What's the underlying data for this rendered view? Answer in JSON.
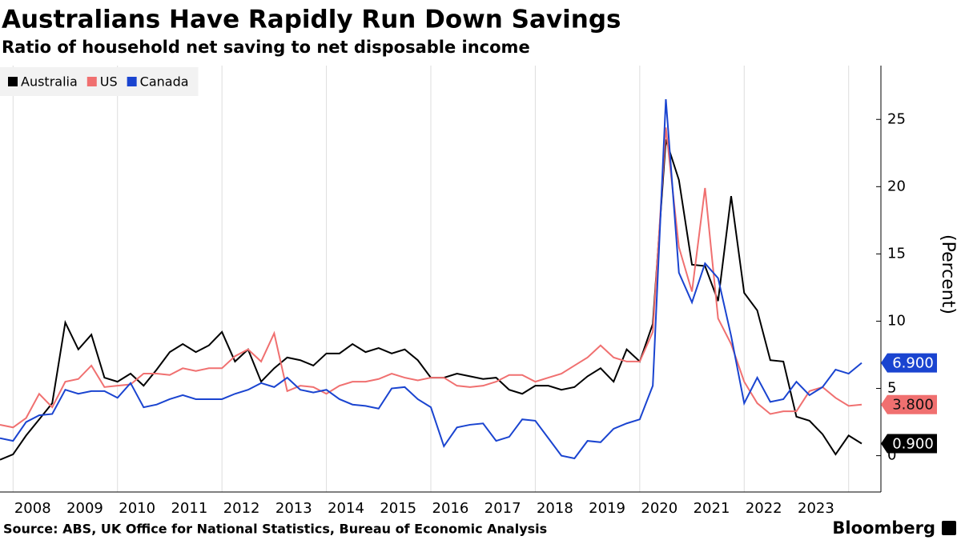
{
  "chart_data": {
    "type": "line",
    "title": "Australians Have Rapidly Run Down Savings",
    "subtitle": "Ratio of household net saving to net disposable income",
    "y_label": "(Percent)",
    "source": "Source: ABS, UK Office for National Statistics, Bureau of Economic Analysis",
    "credit": "Bloomberg",
    "legend": "upper left",
    "xgrid": true,
    "categories": [
      null,
      "2008",
      null,
      null,
      null,
      "2009",
      null,
      null,
      null,
      "2010",
      null,
      null,
      null,
      "2011",
      null,
      null,
      null,
      "2012",
      null,
      null,
      null,
      "2013",
      null,
      null,
      null,
      "2014",
      null,
      null,
      null,
      "2015",
      null,
      null,
      null,
      "2016",
      null,
      null,
      null,
      "2017",
      null,
      null,
      null,
      "2018",
      null,
      null,
      null,
      "2019",
      null,
      null,
      null,
      "2020",
      null,
      null,
      null,
      "2021",
      null,
      null,
      null,
      "2022",
      null,
      null,
      null,
      "2023",
      null,
      null,
      null,
      null,
      null
    ],
    "series": [
      {
        "name": "Australia",
        "color": "#000000",
        "label_text_color": "#ffffff",
        "values": [
          -0.3,
          0.1,
          1.5,
          2.7,
          3.9,
          9.9,
          7.9,
          9.0,
          5.8,
          5.5,
          6.1,
          5.2,
          6.4,
          7.7,
          8.3,
          7.7,
          8.2,
          9.2,
          7.0,
          7.9,
          5.5,
          6.5,
          7.3,
          7.1,
          6.7,
          7.6,
          7.6,
          8.3,
          7.7,
          8.0,
          7.6,
          7.9,
          7.1,
          5.8,
          5.8,
          6.1,
          5.9,
          5.7,
          5.8,
          4.9,
          4.6,
          5.2,
          5.2,
          4.9,
          5.1,
          5.9,
          6.5,
          5.5,
          7.9,
          7.0,
          9.8,
          23.5,
          20.5,
          14.2,
          14.1,
          11.5,
          19.3,
          12.1,
          10.8,
          7.1,
          7.0,
          2.9,
          2.6,
          1.6,
          0.1,
          1.5,
          0.9
        ],
        "value_labels": [
          null,
          null,
          null,
          null,
          null,
          null,
          null,
          null,
          null,
          null,
          null,
          null,
          null,
          null,
          null,
          null,
          null,
          null,
          null,
          null,
          null,
          null,
          null,
          null,
          null,
          null,
          null,
          null,
          null,
          null,
          null,
          null,
          null,
          null,
          null,
          null,
          null,
          null,
          null,
          null,
          null,
          null,
          null,
          null,
          null,
          null,
          null,
          null,
          null,
          null,
          null,
          null,
          null,
          null,
          null,
          null,
          null,
          null,
          null,
          null,
          null,
          null,
          null,
          null,
          null,
          null,
          "0.900"
        ]
      },
      {
        "name": "US",
        "color": "#f07070",
        "label_text_color": "#111111",
        "values": [
          2.3,
          2.1,
          2.8,
          4.6,
          3.6,
          5.5,
          5.7,
          6.7,
          5.1,
          5.2,
          5.3,
          6.1,
          6.1,
          6.0,
          6.5,
          6.3,
          6.5,
          6.5,
          7.4,
          7.9,
          7.0,
          9.1,
          4.8,
          5.2,
          5.1,
          4.6,
          5.2,
          5.5,
          5.5,
          5.7,
          6.1,
          5.8,
          5.6,
          5.8,
          5.8,
          5.2,
          5.1,
          5.2,
          5.5,
          6.0,
          6.0,
          5.5,
          5.8,
          6.1,
          6.7,
          7.3,
          8.2,
          7.3,
          7.0,
          7.0,
          9.2,
          24.4,
          15.5,
          12.2,
          19.9,
          10.2,
          8.3,
          5.5,
          3.9,
          3.1,
          3.3,
          3.3,
          4.8,
          5.1,
          4.3,
          3.7,
          3.8
        ],
        "value_labels": [
          null,
          null,
          null,
          null,
          null,
          null,
          null,
          null,
          null,
          null,
          null,
          null,
          null,
          null,
          null,
          null,
          null,
          null,
          null,
          null,
          null,
          null,
          null,
          null,
          null,
          null,
          null,
          null,
          null,
          null,
          null,
          null,
          null,
          null,
          null,
          null,
          null,
          null,
          null,
          null,
          null,
          null,
          null,
          null,
          null,
          null,
          null,
          null,
          null,
          null,
          null,
          null,
          null,
          null,
          null,
          null,
          null,
          null,
          null,
          null,
          null,
          null,
          null,
          null,
          null,
          null,
          "3.800"
        ]
      },
      {
        "name": "Canada",
        "color": "#1a44d0",
        "label_text_color": "#ffffff",
        "values": [
          1.3,
          1.1,
          2.5,
          3.0,
          3.1,
          4.9,
          4.6,
          4.8,
          4.8,
          4.3,
          5.4,
          3.6,
          3.8,
          4.2,
          4.5,
          4.2,
          4.2,
          4.2,
          4.6,
          4.9,
          5.4,
          5.1,
          5.8,
          4.9,
          4.7,
          4.9,
          4.2,
          3.8,
          3.7,
          3.5,
          5.0,
          5.1,
          4.2,
          3.6,
          0.7,
          2.1,
          2.3,
          2.4,
          1.1,
          1.4,
          2.7,
          2.6,
          1.3,
          0.0,
          -0.2,
          1.1,
          1.0,
          2.0,
          2.4,
          2.7,
          5.2,
          26.5,
          13.6,
          11.4,
          14.3,
          13.2,
          8.9,
          3.9,
          5.8,
          4.0,
          4.2,
          5.5,
          4.5,
          5.1,
          6.4,
          6.1,
          6.9
        ],
        "value_labels": [
          null,
          null,
          null,
          null,
          null,
          null,
          null,
          null,
          null,
          null,
          null,
          null,
          null,
          null,
          null,
          null,
          null,
          null,
          null,
          null,
          null,
          null,
          null,
          null,
          null,
          null,
          null,
          null,
          null,
          null,
          null,
          null,
          null,
          null,
          null,
          null,
          null,
          null,
          null,
          null,
          null,
          null,
          null,
          null,
          null,
          null,
          null,
          null,
          null,
          null,
          null,
          null,
          null,
          null,
          null,
          null,
          null,
          null,
          null,
          null,
          null,
          null,
          null,
          null,
          null,
          null,
          "6.900"
        ]
      }
    ],
    "ylim": [
      -2.7,
      29
    ],
    "yticks": [
      0,
      5,
      10,
      15,
      20,
      25
    ]
  }
}
